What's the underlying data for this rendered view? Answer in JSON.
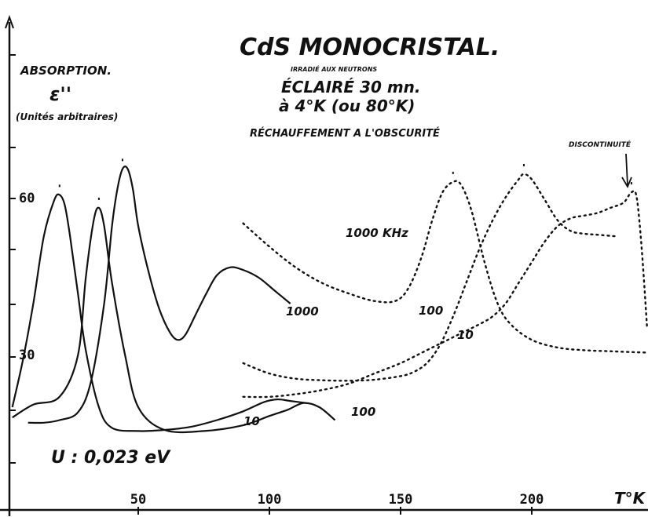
{
  "chart_data": {
    "type": "line",
    "title": "CdS MONOCRISTAL.",
    "subtitle_lines": [
      "IRRADIÉ AUX NEUTRONS",
      "ÉCLAIRÉ 30 mn.",
      "à 4°K (ou 80°K)",
      "RÉCHAUFFEMENT A L'OBSCURITÉ"
    ],
    "ylabel_lines": [
      "ABSORPTION.",
      "ε''",
      "(Unités arbitraires)"
    ],
    "xlabel": "T°K",
    "annotation_discontinuity": "DISCONTINUITÉ",
    "annotation_energy": "U : 0,023 eV",
    "xlim": [
      0,
      250
    ],
    "ylim": [
      0,
      83
    ],
    "x_ticks": [
      50,
      100,
      150,
      200
    ],
    "y_ticks": [
      60,
      30
    ],
    "x_tick_labels": [
      "50",
      "100",
      "150",
      "200"
    ],
    "y_tick_labels": [
      "60",
      "30"
    ],
    "series": [
      {
        "name": "10",
        "style": "solid",
        "x": [
          2,
          6,
          10,
          14,
          18,
          20,
          22,
          24,
          27,
          30,
          35,
          40,
          50,
          60,
          70,
          80,
          90,
          98,
          103,
          108,
          114
        ],
        "y": [
          20,
          29,
          40,
          53,
          60,
          61,
          59,
          53,
          42,
          31,
          20,
          16,
          15.4,
          15.6,
          16.2,
          17.5,
          19.2,
          21,
          21.5,
          21.2,
          20.8
        ]
      },
      {
        "name": "100",
        "style": "solid",
        "x": [
          2,
          10,
          20,
          27,
          30,
          33,
          35,
          37,
          40,
          45,
          50,
          60,
          75,
          90,
          100,
          107,
          113,
          119,
          125
        ],
        "y": [
          18,
          20.5,
          22,
          30,
          45,
          56,
          58.5,
          55,
          44,
          30,
          20,
          15.6,
          15.4,
          16.5,
          18.3,
          19.5,
          20.8,
          20,
          17.5
        ]
      },
      {
        "name": "1000",
        "style": "solid",
        "x": [
          8,
          14,
          20,
          27,
          32,
          37,
          40,
          42,
          44,
          46,
          48,
          50,
          54,
          58,
          62,
          65,
          68,
          72,
          76,
          80,
          85,
          90,
          96,
          102,
          108
        ],
        "y": [
          17,
          17,
          17.5,
          19,
          25,
          40,
          55,
          62,
          66,
          66,
          62,
          55,
          46,
          39,
          34.5,
          33,
          34,
          38,
          42,
          45.5,
          47,
          46.5,
          45,
          42.5,
          40
        ]
      },
      {
        "name": "1000 KHz",
        "style": "dotted",
        "x": [
          90,
          100,
          110,
          120,
          130,
          140,
          148,
          153,
          158,
          162,
          166,
          170,
          173,
          177,
          182,
          187,
          192,
          200,
          210,
          220,
          230,
          240,
          250
        ],
        "y": [
          55.5,
          51,
          47,
          44,
          42,
          40.5,
          40.5,
          43,
          49,
          56,
          61.5,
          63.5,
          63,
          58,
          48,
          40,
          36,
          33,
          31.5,
          31,
          30.8,
          30.6,
          30.5
        ]
      },
      {
        "name": "100",
        "style": "dotted",
        "x": [
          90,
          100,
          110,
          120,
          130,
          140,
          150,
          155,
          160,
          165,
          170,
          175,
          180,
          185,
          190,
          195,
          197,
          200,
          205,
          210,
          215,
          220,
          225,
          232
        ],
        "y": [
          28.5,
          26.5,
          25.5,
          25.2,
          25.1,
          25.3,
          26,
          26.8,
          28.5,
          32,
          37.5,
          44,
          50.5,
          56,
          60.5,
          64,
          65,
          64,
          60,
          56,
          54,
          53.5,
          53.3,
          53
        ]
      },
      {
        "name": "10",
        "style": "dotted",
        "x": [
          90,
          100,
          110,
          120,
          130,
          140,
          150,
          160,
          170,
          180,
          185,
          190,
          195,
          200,
          205,
          210,
          215,
          220,
          225,
          230,
          235,
          238,
          240,
          242,
          244
        ],
        "y": [
          22,
          22,
          22.5,
          23.3,
          24.5,
          26.5,
          28.5,
          31,
          33.5,
          36,
          37.5,
          40,
          44,
          48,
          52,
          55,
          56.5,
          57,
          57.5,
          58.5,
          59.5,
          61.5,
          60.5,
          50,
          35
        ]
      }
    ]
  }
}
